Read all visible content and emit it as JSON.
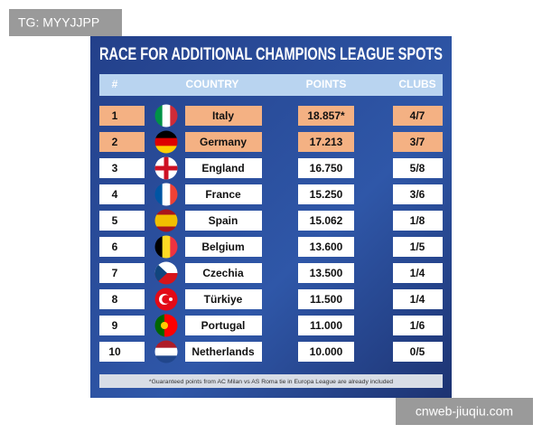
{
  "watermark": "TG: MYYJJPP",
  "title": "RACE FOR ADDITIONAL CHAMPIONS LEAGUE SPOTS",
  "table": {
    "header": [
      "#",
      "COUNTRY",
      "POINTS",
      "CLUBS"
    ],
    "rows": [
      [
        "1",
        "Italy",
        "18.857*",
        "4/7"
      ],
      [
        "2",
        "Germany",
        "17.213",
        "3/7"
      ],
      [
        "3",
        "England",
        "16.750",
        "5/8"
      ],
      [
        "4",
        "France",
        "15.250",
        "3/6"
      ],
      [
        "5",
        "Spain",
        "15.062",
        "1/8"
      ],
      [
        "6",
        "Belgium",
        "13.600",
        "1/5"
      ],
      [
        "7",
        "Czechia",
        "13.500",
        "1/4"
      ],
      [
        "8",
        "Türkiye",
        "11.500",
        "1/4"
      ],
      [
        "9",
        "Portugal",
        "11.000",
        "1/6"
      ],
      [
        "10",
        "Netherlands",
        "10.000",
        "0/5"
      ]
    ]
  },
  "footnote": "*Guaranteed points from AC Milan vs AS Roma tie in Europa League are already included",
  "source": "cnweb-jiuqiu.com"
}
